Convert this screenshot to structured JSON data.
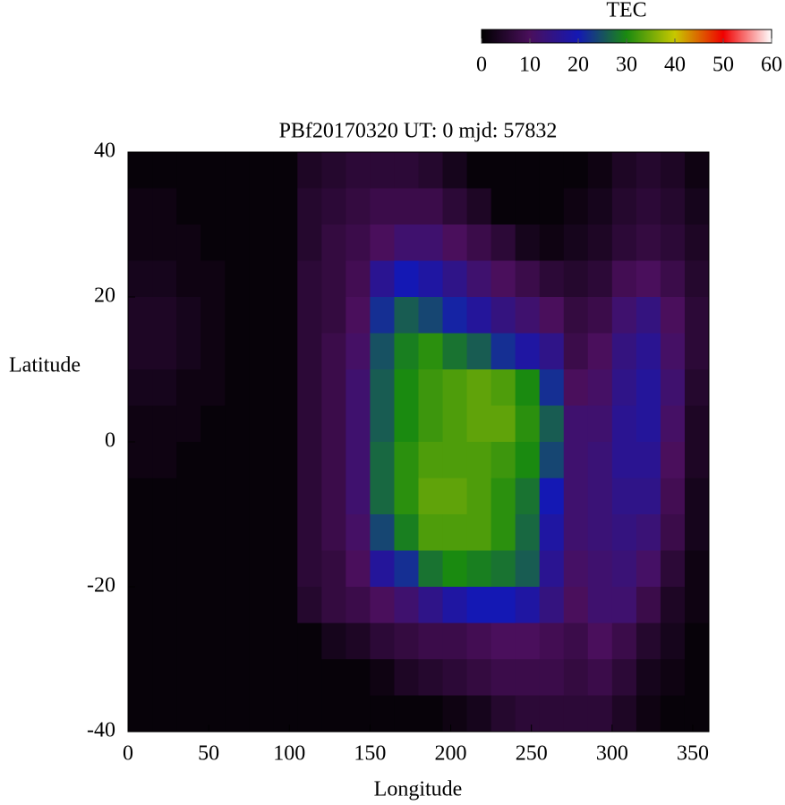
{
  "chart_data": {
    "type": "heatmap",
    "title": "PBf20170320  UT: 0  mjd: 57832",
    "x_label": "Longitude",
    "y_label": "Latitude",
    "colorbar_label": "TEC",
    "x": [
      7.5,
      22.5,
      37.5,
      52.5,
      67.5,
      82.5,
      97.5,
      112.5,
      127.5,
      142.5,
      157.5,
      172.5,
      187.5,
      202.5,
      217.5,
      232.5,
      247.5,
      262.5,
      277.5,
      292.5,
      307.5,
      322.5,
      337.5,
      352.5
    ],
    "y": [
      37.5,
      32.5,
      27.5,
      22.5,
      17.5,
      12.5,
      7.5,
      2.5,
      -2.5,
      -7.5,
      -12.5,
      -17.5,
      -22.5,
      -27.5,
      -32.5,
      -37.5
    ],
    "values": [
      [
        1,
        1,
        1,
        1,
        1,
        1,
        1,
        4,
        5,
        6,
        6,
        6,
        5,
        3,
        1,
        1,
        1,
        1,
        1,
        2,
        4,
        5,
        4,
        2
      ],
      [
        2,
        2,
        1,
        1,
        1,
        1,
        1,
        5,
        6,
        7,
        8,
        8,
        8,
        6,
        4,
        1,
        1,
        1,
        2,
        3,
        5,
        6,
        5,
        3
      ],
      [
        2,
        2,
        2,
        1,
        1,
        1,
        1,
        5,
        7,
        8,
        10,
        12,
        12,
        10,
        8,
        6,
        3,
        2,
        3,
        4,
        6,
        7,
        6,
        4
      ],
      [
        3,
        3,
        2,
        2,
        1,
        1,
        1,
        6,
        7,
        9,
        16,
        20,
        18,
        15,
        12,
        10,
        8,
        6,
        5,
        6,
        9,
        10,
        8,
        5
      ],
      [
        4,
        4,
        3,
        2,
        1,
        1,
        1,
        6,
        7,
        10,
        22,
        26,
        24,
        21,
        17,
        14,
        12,
        10,
        7,
        8,
        12,
        14,
        10,
        6
      ],
      [
        4,
        4,
        3,
        2,
        1,
        1,
        1,
        6,
        8,
        11,
        25,
        29,
        31,
        28,
        26,
        22,
        18,
        15,
        8,
        10,
        14,
        16,
        11,
        6
      ],
      [
        3,
        3,
        2,
        2,
        1,
        1,
        1,
        6,
        8,
        12,
        26,
        30,
        32,
        33,
        34,
        33,
        30,
        22,
        10,
        11,
        15,
        17,
        12,
        5
      ],
      [
        2,
        2,
        2,
        1,
        1,
        1,
        1,
        6,
        8,
        12,
        26,
        30,
        32,
        33,
        34,
        34,
        31,
        26,
        12,
        12,
        16,
        17,
        11,
        4
      ],
      [
        2,
        2,
        1,
        1,
        1,
        1,
        1,
        6,
        8,
        12,
        27,
        31,
        33,
        33,
        33,
        32,
        30,
        24,
        12,
        13,
        16,
        16,
        10,
        4
      ],
      [
        1,
        1,
        1,
        1,
        1,
        1,
        1,
        6,
        8,
        12,
        27,
        31,
        34,
        34,
        33,
        31,
        28,
        20,
        12,
        13,
        15,
        15,
        9,
        3
      ],
      [
        1,
        1,
        1,
        1,
        1,
        1,
        1,
        6,
        8,
        11,
        24,
        29,
        33,
        33,
        33,
        31,
        27,
        18,
        12,
        13,
        14,
        13,
        8,
        3
      ],
      [
        1,
        1,
        1,
        1,
        1,
        1,
        1,
        6,
        7,
        10,
        17,
        22,
        28,
        30,
        29,
        28,
        26,
        16,
        11,
        12,
        13,
        11,
        6,
        2
      ],
      [
        1,
        1,
        1,
        1,
        1,
        1,
        1,
        5,
        7,
        8,
        10,
        12,
        15,
        18,
        20,
        20,
        18,
        14,
        10,
        12,
        12,
        8,
        4,
        2
      ],
      [
        1,
        1,
        1,
        1,
        1,
        1,
        1,
        1,
        3,
        4,
        6,
        7,
        8,
        8,
        9,
        10,
        10,
        9,
        8,
        10,
        8,
        5,
        3,
        1
      ],
      [
        1,
        1,
        1,
        1,
        1,
        1,
        1,
        1,
        1,
        1,
        2,
        4,
        5,
        6,
        7,
        8,
        8,
        8,
        7,
        8,
        6,
        3,
        2,
        1
      ],
      [
        1,
        1,
        1,
        1,
        1,
        1,
        1,
        1,
        1,
        1,
        1,
        1,
        1,
        2,
        3,
        5,
        6,
        6,
        6,
        6,
        4,
        2,
        1,
        1
      ]
    ],
    "xlim": [
      0,
      360
    ],
    "xticks": [
      0,
      50,
      100,
      150,
      200,
      250,
      300,
      350
    ],
    "ylim": [
      -40,
      40
    ],
    "yticks": [
      -40,
      -20,
      0,
      20,
      40
    ],
    "zlim": [
      0,
      60
    ],
    "zticks": [
      0,
      10,
      20,
      30,
      40,
      50,
      60
    ],
    "colorscale": [
      "#000000",
      "#4a0f5c",
      "#1418b4",
      "#1a8a10",
      "#c8c800",
      "#f00000",
      "#ffffff"
    ]
  }
}
